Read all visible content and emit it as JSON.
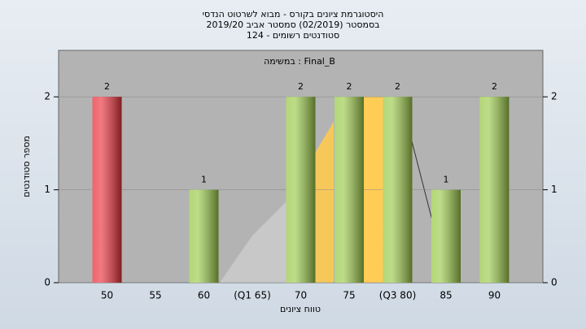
{
  "chart_data": {
    "type": "bar",
    "title": [
      "היסטוגרמת ציונים בקורס - מבוא לשרטוט הנדסי",
      "בסמסטר (02/2019) סמסטר אביב 2019/20",
      "סטודנטים רשומים - 124"
    ],
    "annotation": "Final_B : במשימה",
    "x_label": "טווח ציונים",
    "y_label": "מספר סטודנטים",
    "categories": [
      "50",
      "55",
      "60",
      "(Q1 65)",
      "70",
      "75",
      "(Q3 80)",
      "85",
      "90"
    ],
    "values": [
      2,
      0,
      1,
      0,
      2,
      2,
      2,
      1,
      2
    ],
    "colors": [
      "#e8323c",
      "#9bc94a",
      "#9bc94a",
      "#9bc94a",
      "#9bc94a",
      "#9bc94a",
      "#9bc94a",
      "#9bc94a",
      "#9bc94a"
    ],
    "ylim": [
      0,
      2.5
    ],
    "yticks": [
      0,
      1,
      2
    ],
    "y2lim": [
      0,
      2.5
    ],
    "y2ticks": [
      0,
      1,
      2
    ],
    "grid": true
  }
}
